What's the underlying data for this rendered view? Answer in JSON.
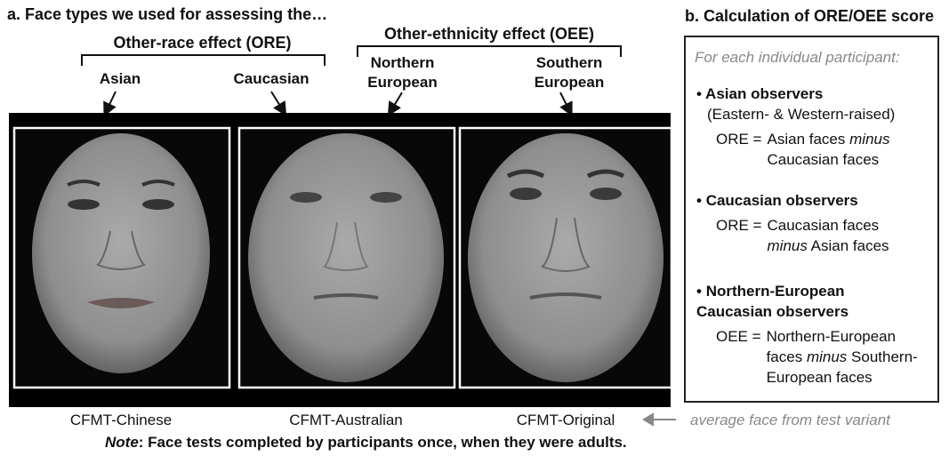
{
  "panel_a": {
    "title": "a. Face types we used for assessing the…",
    "groups": [
      "Other-race effect (ORE)",
      "Other-ethnicity effect (OEE)"
    ],
    "face_labels": [
      "Asian",
      "Caucasian",
      "Northern European",
      "Southern European"
    ],
    "captions": [
      "CFMT-Chinese",
      "CFMT-Australian",
      "CFMT-Original"
    ],
    "caption_note": "average face from test variant",
    "note_label": "Note",
    "note_text": ": Face tests completed by participants once, when they were adults."
  },
  "panel_b": {
    "title": "b. Calculation of ORE/OEE score",
    "intro": "For each individual participant:",
    "items": [
      {
        "heading": "Asian observers",
        "sub": "(Eastern- & Western-raised)",
        "lhs": "ORE =",
        "first": "Asian faces",
        "op": "minus",
        "second": "Caucasian faces"
      },
      {
        "heading": "Caucasian observers",
        "lhs": "ORE =",
        "first": "Caucasian faces",
        "op": "minus",
        "second": "Asian faces"
      },
      {
        "heading": "Northern-European Caucasian observers",
        "lhs": "OEE =",
        "first": "Northern-European faces",
        "op": "minus",
        "second": "Southern-European faces"
      }
    ]
  }
}
